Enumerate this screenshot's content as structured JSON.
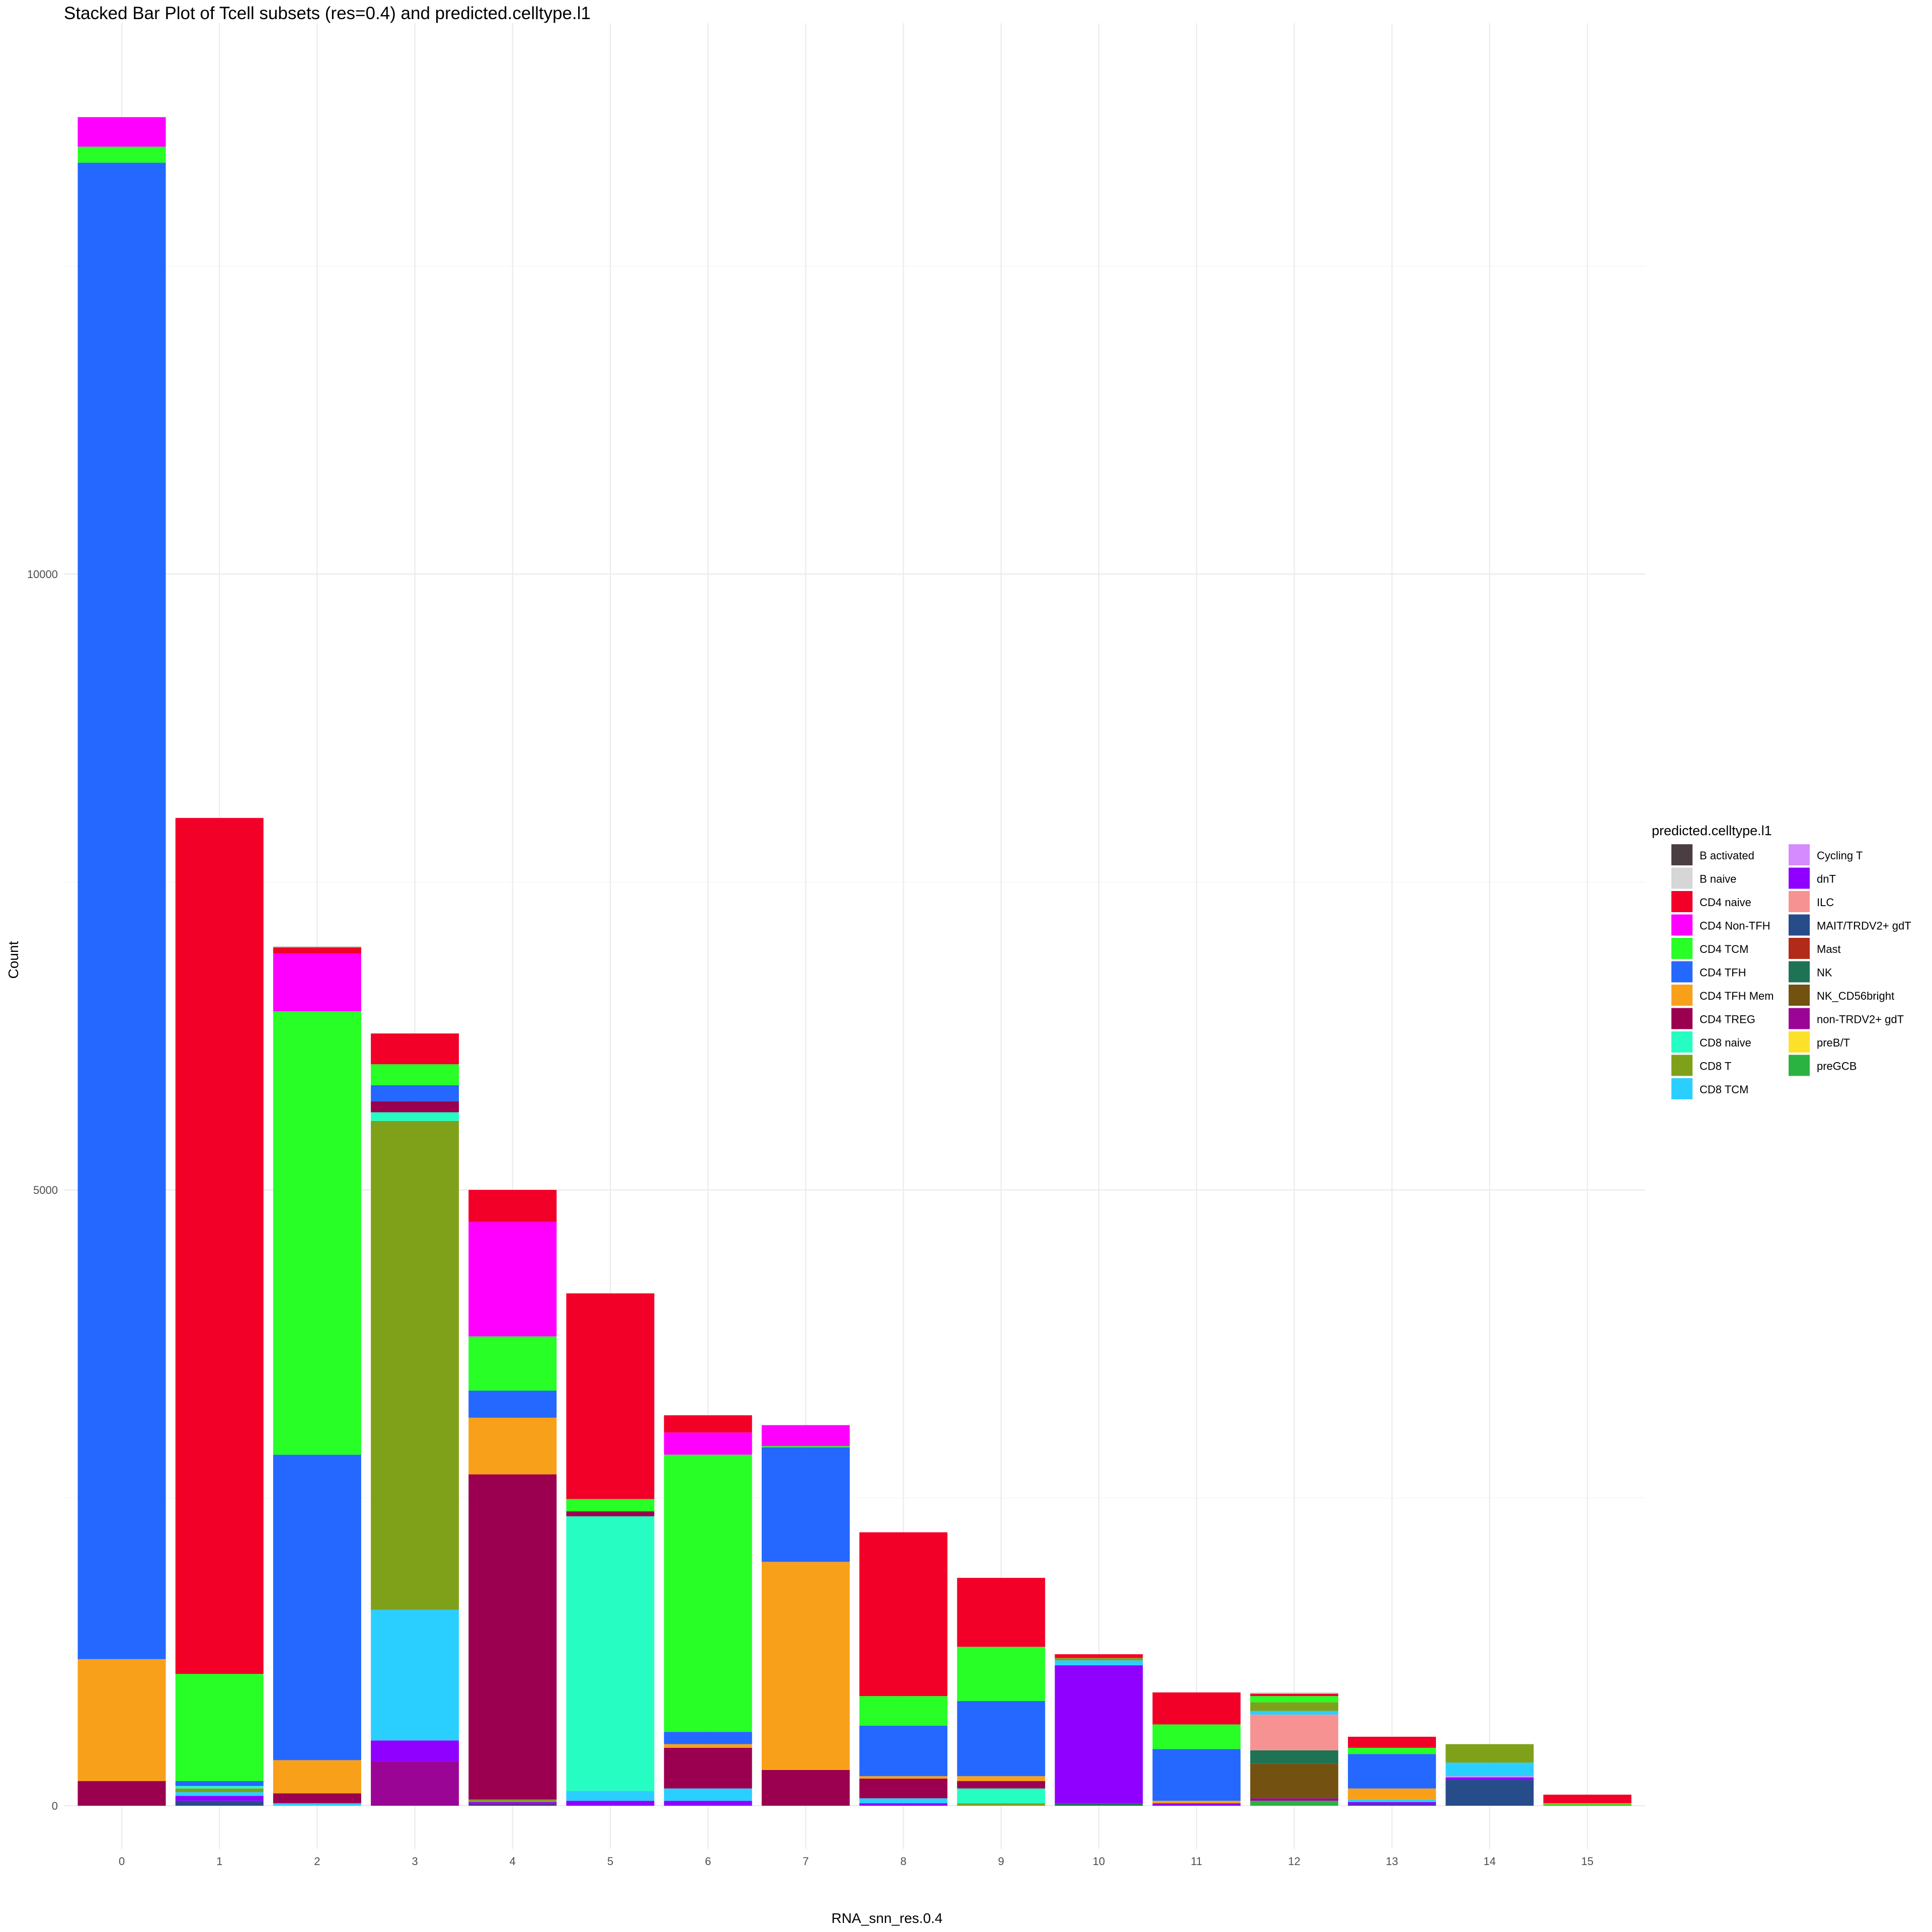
{
  "chart_data": {
    "type": "bar",
    "stacked": true,
    "title": "Stacked Bar Plot of Tcell subsets (res=0.4) and predicted.celltype.l1",
    "xlabel": "RNA_snn_res.0.4",
    "ylabel": "Count",
    "ylim": [
      0,
      14000
    ],
    "yticks": [
      "0",
      "5000",
      "10000"
    ],
    "grid": true,
    "legend_title": "predicted.celltype.l1",
    "legend_position": "right",
    "categories": [
      "0",
      "1",
      "2",
      "3",
      "4",
      "5",
      "6",
      "7",
      "8",
      "9",
      "10",
      "11",
      "12",
      "13",
      "14",
      "15"
    ],
    "series": [
      {
        "name": "B activated",
        "color": "#4B3E42",
        "values": [
          0,
          0,
          0,
          0,
          0,
          0,
          0,
          0,
          0,
          0,
          0,
          0,
          0,
          0,
          0,
          0
        ]
      },
      {
        "name": "B naive",
        "color": "#D6D6D6",
        "values": [
          0,
          0,
          10,
          0,
          0,
          0,
          0,
          0,
          0,
          0,
          0,
          0,
          10,
          0,
          0,
          0
        ]
      },
      {
        "name": "CD4 naive",
        "color": "#F20028",
        "values": [
          0,
          6950,
          50,
          250,
          260,
          1670,
          140,
          0,
          1330,
          560,
          30,
          260,
          20,
          90,
          0,
          70
        ]
      },
      {
        "name": "CD4 Non-TFH",
        "color": "#FF00FF",
        "values": [
          240,
          0,
          470,
          0,
          930,
          0,
          180,
          170,
          0,
          0,
          0,
          0,
          0,
          0,
          0,
          0
        ]
      },
      {
        "name": "CD4 TCM",
        "color": "#27FF27",
        "values": [
          130,
          870,
          3600,
          170,
          440,
          100,
          2250,
          10,
          240,
          440,
          0,
          200,
          50,
          50,
          0,
          10
        ]
      },
      {
        "name": "CD4 TFH",
        "color": "#2568FF",
        "values": [
          12150,
          40,
          2480,
          130,
          220,
          0,
          100,
          930,
          410,
          610,
          0,
          420,
          0,
          280,
          0,
          0
        ]
      },
      {
        "name": "CD4 TFH Mem",
        "color": "#F9A01A",
        "values": [
          990,
          0,
          270,
          0,
          460,
          0,
          30,
          1690,
          20,
          40,
          0,
          20,
          0,
          90,
          0,
          0
        ]
      },
      {
        "name": "CD4 TREG",
        "color": "#9B0050",
        "values": [
          200,
          0,
          80,
          90,
          2640,
          40,
          330,
          290,
          160,
          60,
          0,
          0,
          0,
          0,
          0,
          0
        ]
      },
      {
        "name": "CD8 naive",
        "color": "#26FDC3",
        "values": [
          0,
          20,
          0,
          70,
          0,
          2230,
          0,
          0,
          0,
          120,
          0,
          0,
          0,
          0,
          0,
          0
        ]
      },
      {
        "name": "CD8 T",
        "color": "#7FA11A",
        "values": [
          0,
          30,
          0,
          3970,
          20,
          0,
          0,
          0,
          0,
          20,
          20,
          0,
          70,
          0,
          150,
          10
        ]
      },
      {
        "name": "CD8 TCM",
        "color": "#2BCFFF",
        "values": [
          0,
          30,
          20,
          1060,
          0,
          80,
          100,
          0,
          40,
          0,
          40,
          0,
          30,
          20,
          110,
          0
        ]
      },
      {
        "name": "Cycling T",
        "color": "#D58AFD",
        "values": [
          0,
          0,
          0,
          0,
          0,
          0,
          0,
          0,
          0,
          0,
          0,
          0,
          0,
          0,
          10,
          0
        ]
      },
      {
        "name": "dnT",
        "color": "#8F00FF",
        "values": [
          0,
          40,
          0,
          170,
          10,
          40,
          40,
          0,
          20,
          0,
          1120,
          20,
          0,
          20,
          20,
          0
        ]
      },
      {
        "name": "ILC",
        "color": "#F69392",
        "values": [
          0,
          0,
          0,
          0,
          0,
          0,
          0,
          0,
          0,
          0,
          0,
          0,
          290,
          0,
          0,
          0
        ]
      },
      {
        "name": "MAIT/TRDV2+ gdT",
        "color": "#264C8A",
        "values": [
          0,
          40,
          0,
          0,
          10,
          0,
          0,
          0,
          0,
          0,
          0,
          0,
          0,
          10,
          210,
          0
        ]
      },
      {
        "name": "Mast",
        "color": "#B22A1A",
        "values": [
          0,
          0,
          0,
          0,
          0,
          0,
          0,
          0,
          0,
          0,
          0,
          0,
          0,
          0,
          0,
          0
        ]
      },
      {
        "name": "NK",
        "color": "#1E7355",
        "values": [
          0,
          0,
          0,
          0,
          0,
          0,
          0,
          0,
          0,
          0,
          20,
          0,
          110,
          0,
          0,
          0
        ]
      },
      {
        "name": "NK_CD56bright",
        "color": "#735110",
        "values": [
          0,
          0,
          0,
          0,
          0,
          0,
          0,
          0,
          0,
          0,
          0,
          0,
          280,
          0,
          0,
          0
        ]
      },
      {
        "name": "non-TRDV2+ gdT",
        "color": "#9B0596",
        "values": [
          0,
          0,
          0,
          360,
          10,
          0,
          0,
          0,
          0,
          0,
          0,
          0,
          20,
          0,
          0,
          0
        ]
      },
      {
        "name": "preB/T",
        "color": "#FDE02A",
        "values": [
          0,
          0,
          0,
          0,
          0,
          0,
          0,
          0,
          0,
          0,
          0,
          0,
          0,
          0,
          0,
          0
        ]
      },
      {
        "name": "preGCB",
        "color": "#2AB341",
        "values": [
          0,
          0,
          0,
          0,
          0,
          0,
          0,
          0,
          0,
          0,
          0,
          0,
          40,
          0,
          0,
          0
        ]
      }
    ]
  }
}
